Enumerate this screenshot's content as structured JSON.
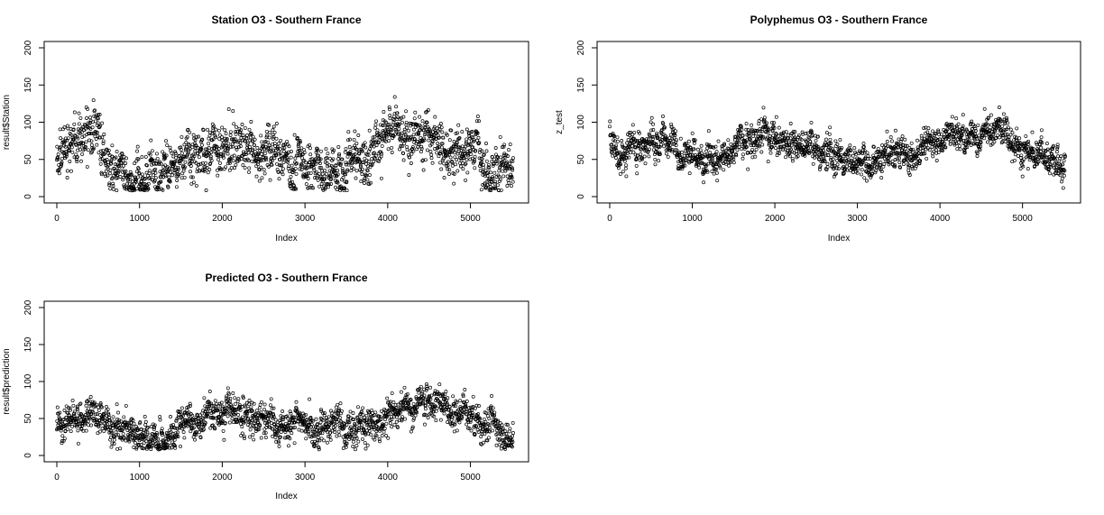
{
  "chart_data": [
    {
      "type": "scatter",
      "title": "Station O3 - Southern France",
      "xlabel": "Index",
      "ylabel": "result$Station",
      "xlim": [
        0,
        5550
      ],
      "ylim": [
        0,
        200
      ],
      "xticks": [
        "0",
        "1000",
        "2000",
        "3000",
        "4000",
        "5000"
      ],
      "yticks": [
        "0",
        "50",
        "100",
        "150",
        "200"
      ],
      "grid": false,
      "marker": "open-circle",
      "n_points": 5520,
      "series": [
        {
          "x": [
            0,
            100,
            200,
            300,
            400,
            500,
            600,
            700,
            800,
            900,
            1000,
            1100,
            1200,
            1300,
            1400,
            1500,
            1600,
            1700,
            1800,
            1900,
            2000,
            2100,
            2200,
            2300,
            2400,
            2500,
            2600,
            2700,
            2800,
            2900,
            3000,
            3100,
            3200,
            3300,
            3400,
            3500,
            3600,
            3700,
            3800,
            3900,
            4000,
            4100,
            4200,
            4300,
            4400,
            4500,
            4600,
            4700,
            4800,
            4900,
            5000,
            5100,
            5200,
            5300,
            5400,
            5500
          ],
          "y": [
            55,
            65,
            75,
            70,
            80,
            85,
            60,
            40,
            30,
            32,
            28,
            22,
            25,
            35,
            45,
            55,
            60,
            65,
            70,
            72,
            68,
            70,
            80,
            75,
            65,
            60,
            58,
            55,
            50,
            45,
            42,
            40,
            45,
            48,
            45,
            42,
            50,
            55,
            60,
            65,
            80,
            78,
            75,
            72,
            80,
            85,
            80,
            78,
            70,
            60,
            55,
            52,
            50,
            40,
            35,
            30
          ]
        }
      ]
    },
    {
      "type": "scatter",
      "title": "Polyphemus O3 - Southern France",
      "xlabel": "Index",
      "ylabel": "z_test",
      "xlim": [
        0,
        5550
      ],
      "ylim": [
        0,
        200
      ],
      "xticks": [
        "0",
        "1000",
        "2000",
        "3000",
        "4000",
        "5000"
      ],
      "yticks": [
        "0",
        "50",
        "100",
        "150",
        "200"
      ],
      "grid": false,
      "marker": "open-circle",
      "n_points": 5520,
      "series": [
        {
          "x": [
            0,
            100,
            200,
            300,
            400,
            500,
            600,
            700,
            800,
            900,
            1000,
            1100,
            1200,
            1300,
            1400,
            1500,
            1600,
            1700,
            1800,
            1900,
            2000,
            2100,
            2200,
            2300,
            2400,
            2500,
            2600,
            2700,
            2800,
            2900,
            3000,
            3100,
            3200,
            3300,
            3400,
            3500,
            3600,
            3700,
            3800,
            3900,
            4000,
            4100,
            4200,
            4300,
            4400,
            4500,
            4600,
            4700,
            4800,
            4900,
            5000,
            5100,
            5200,
            5300,
            5400,
            5500
          ],
          "y": [
            75,
            65,
            62,
            68,
            70,
            80,
            75,
            60,
            55,
            52,
            50,
            48,
            50,
            52,
            55,
            65,
            70,
            72,
            78,
            82,
            80,
            78,
            72,
            70,
            68,
            65,
            62,
            60,
            58,
            55,
            52,
            50,
            48,
            50,
            52,
            55,
            52,
            55,
            60,
            65,
            75,
            80,
            85,
            82,
            80,
            85,
            90,
            85,
            80,
            72,
            65,
            60,
            55,
            50,
            48,
            45
          ]
        }
      ]
    },
    {
      "type": "scatter",
      "title": "Predicted O3 - Southern France",
      "xlabel": "Index",
      "ylabel": "result$prediction",
      "xlim": [
        0,
        5550
      ],
      "ylim": [
        0,
        200
      ],
      "xticks": [
        "0",
        "1000",
        "2000",
        "3000",
        "4000",
        "5000"
      ],
      "yticks": [
        "0",
        "50",
        "100",
        "150",
        "200"
      ],
      "grid": false,
      "marker": "open-circle",
      "n_points": 5520,
      "series": [
        {
          "x": [
            0,
            100,
            200,
            300,
            400,
            500,
            600,
            700,
            800,
            900,
            1000,
            1100,
            1200,
            1300,
            1400,
            1500,
            1600,
            1700,
            1800,
            1900,
            2000,
            2100,
            2200,
            2300,
            2400,
            2500,
            2600,
            2700,
            2800,
            2900,
            3000,
            3100,
            3200,
            3300,
            3400,
            3500,
            3600,
            3700,
            3800,
            3900,
            4000,
            4100,
            4200,
            4300,
            4400,
            4500,
            4600,
            4700,
            4800,
            4900,
            5000,
            5100,
            5200,
            5300,
            5400,
            5500
          ],
          "y": [
            45,
            50,
            55,
            52,
            55,
            60,
            50,
            38,
            32,
            30,
            28,
            22,
            25,
            30,
            38,
            42,
            45,
            48,
            50,
            52,
            55,
            55,
            52,
            50,
            48,
            45,
            42,
            40,
            40,
            38,
            36,
            35,
            38,
            40,
            38,
            36,
            38,
            40,
            42,
            45,
            55,
            58,
            60,
            62,
            65,
            68,
            70,
            65,
            60,
            55,
            48,
            45,
            42,
            38,
            36,
            34
          ]
        }
      ]
    }
  ]
}
